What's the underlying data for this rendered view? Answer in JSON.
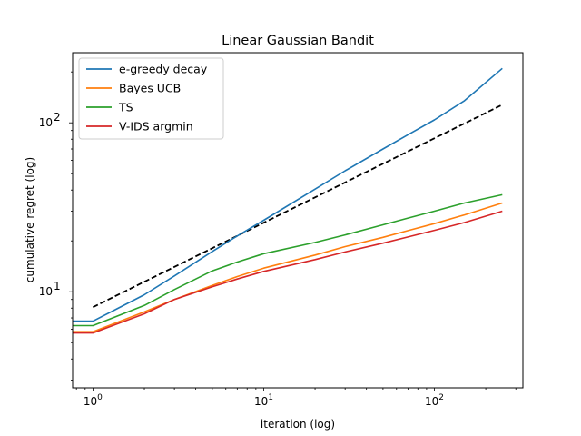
{
  "chart_data": {
    "type": "line",
    "title": "Linear Gaussian Bandit",
    "xlabel": "iteration (log)",
    "ylabel": "cumulative regret (log)",
    "xscale": "log",
    "yscale": "log",
    "xlim": [
      0.76,
      330
    ],
    "ylim": [
      2.7,
      260
    ],
    "xticks": [
      {
        "value": 1,
        "base": "10",
        "exp": "0"
      },
      {
        "value": 10,
        "base": "10",
        "exp": "1"
      },
      {
        "value": 100,
        "base": "10",
        "exp": "2"
      }
    ],
    "yticks": [
      {
        "value": 10,
        "base": "10",
        "exp": "1"
      },
      {
        "value": 100,
        "base": "10",
        "exp": "2"
      }
    ],
    "grid": false,
    "legend": "top-left",
    "series": [
      {
        "name": "e-greedy decay",
        "color": "#1f77b4",
        "x": [
          0.76,
          1,
          2,
          3,
          5,
          7,
          10,
          20,
          30,
          50,
          70,
          100,
          150,
          250
        ],
        "y": [
          6.7,
          6.7,
          9.6,
          12.4,
          17.3,
          21.4,
          26.5,
          40.5,
          52,
          70,
          85,
          104,
          135,
          210
        ]
      },
      {
        "name": "Bayes UCB",
        "color": "#ff7f0e",
        "x": [
          0.76,
          1,
          2,
          3,
          5,
          7,
          10,
          20,
          30,
          50,
          70,
          100,
          150,
          250
        ],
        "y": [
          5.8,
          5.8,
          7.6,
          9.0,
          10.9,
          12.3,
          13.8,
          16.5,
          18.5,
          21,
          23,
          25.3,
          28.5,
          33.5
        ]
      },
      {
        "name": "TS",
        "color": "#2ca02c",
        "x": [
          0.76,
          1,
          2,
          3,
          5,
          7,
          10,
          20,
          30,
          50,
          70,
          100,
          150,
          250
        ],
        "y": [
          6.3,
          6.3,
          8.3,
          10.3,
          13.3,
          15.0,
          16.8,
          19.6,
          21.7,
          24.9,
          27.3,
          30,
          33.5,
          37.5
        ]
      },
      {
        "name": "V-IDS argmin",
        "color": "#d62728",
        "x": [
          0.76,
          1,
          2,
          3,
          5,
          7,
          10,
          20,
          30,
          50,
          70,
          100,
          150,
          250
        ],
        "y": [
          5.7,
          5.7,
          7.4,
          9.0,
          10.7,
          11.9,
          13.2,
          15.5,
          17.2,
          19.4,
          21.1,
          23.1,
          25.7,
          30
        ]
      }
    ],
    "reference_line": {
      "color": "#000000",
      "style": "dashed",
      "x": [
        1,
        250
      ],
      "y": [
        8.1,
        128
      ]
    }
  }
}
